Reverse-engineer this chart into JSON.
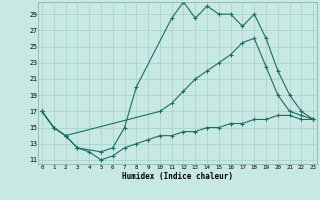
{
  "xlabel": "Humidex (Indice chaleur)",
  "bg_color": "#c8e8e4",
  "grid_color": "#a8d4ce",
  "line_color": "#1a6e62",
  "xlim": [
    -0.3,
    23.3
  ],
  "ylim": [
    10.5,
    30.5
  ],
  "xticks": [
    0,
    1,
    2,
    3,
    4,
    5,
    6,
    7,
    8,
    9,
    10,
    11,
    12,
    13,
    14,
    15,
    16,
    17,
    18,
    19,
    20,
    21,
    22,
    23
  ],
  "yticks": [
    11,
    13,
    15,
    17,
    19,
    21,
    23,
    25,
    27,
    29
  ],
  "line_bottom": {
    "x": [
      0,
      1,
      2,
      3,
      4,
      5,
      6,
      7,
      8,
      9,
      10,
      11,
      12,
      13,
      14,
      15,
      16,
      17,
      18,
      19,
      20,
      21,
      22,
      23
    ],
    "y": [
      17,
      15,
      14,
      12.5,
      12,
      11,
      11.5,
      12.5,
      13,
      13.5,
      14,
      14,
      14.5,
      14.5,
      15,
      15,
      15.5,
      15.5,
      16,
      16,
      16.5,
      16.5,
      16,
      16
    ]
  },
  "line_peak": {
    "x": [
      0,
      1,
      2,
      3,
      5,
      6,
      7,
      8,
      11,
      12,
      13,
      14,
      15,
      16,
      17,
      18,
      19,
      20,
      21,
      22,
      23
    ],
    "y": [
      17,
      15,
      14,
      12.5,
      12,
      12.5,
      15,
      20,
      28.5,
      30.5,
      28.5,
      30,
      29,
      29,
      27.5,
      29,
      26,
      22,
      19,
      17,
      16
    ]
  },
  "line_mid": {
    "x": [
      0,
      1,
      2,
      10,
      11,
      12,
      13,
      14,
      15,
      16,
      17,
      18,
      19,
      20,
      21,
      22,
      23
    ],
    "y": [
      17,
      15,
      14,
      17,
      18,
      19.5,
      21,
      22,
      23,
      24,
      25.5,
      26,
      22.5,
      19,
      17,
      16.5,
      16
    ]
  }
}
